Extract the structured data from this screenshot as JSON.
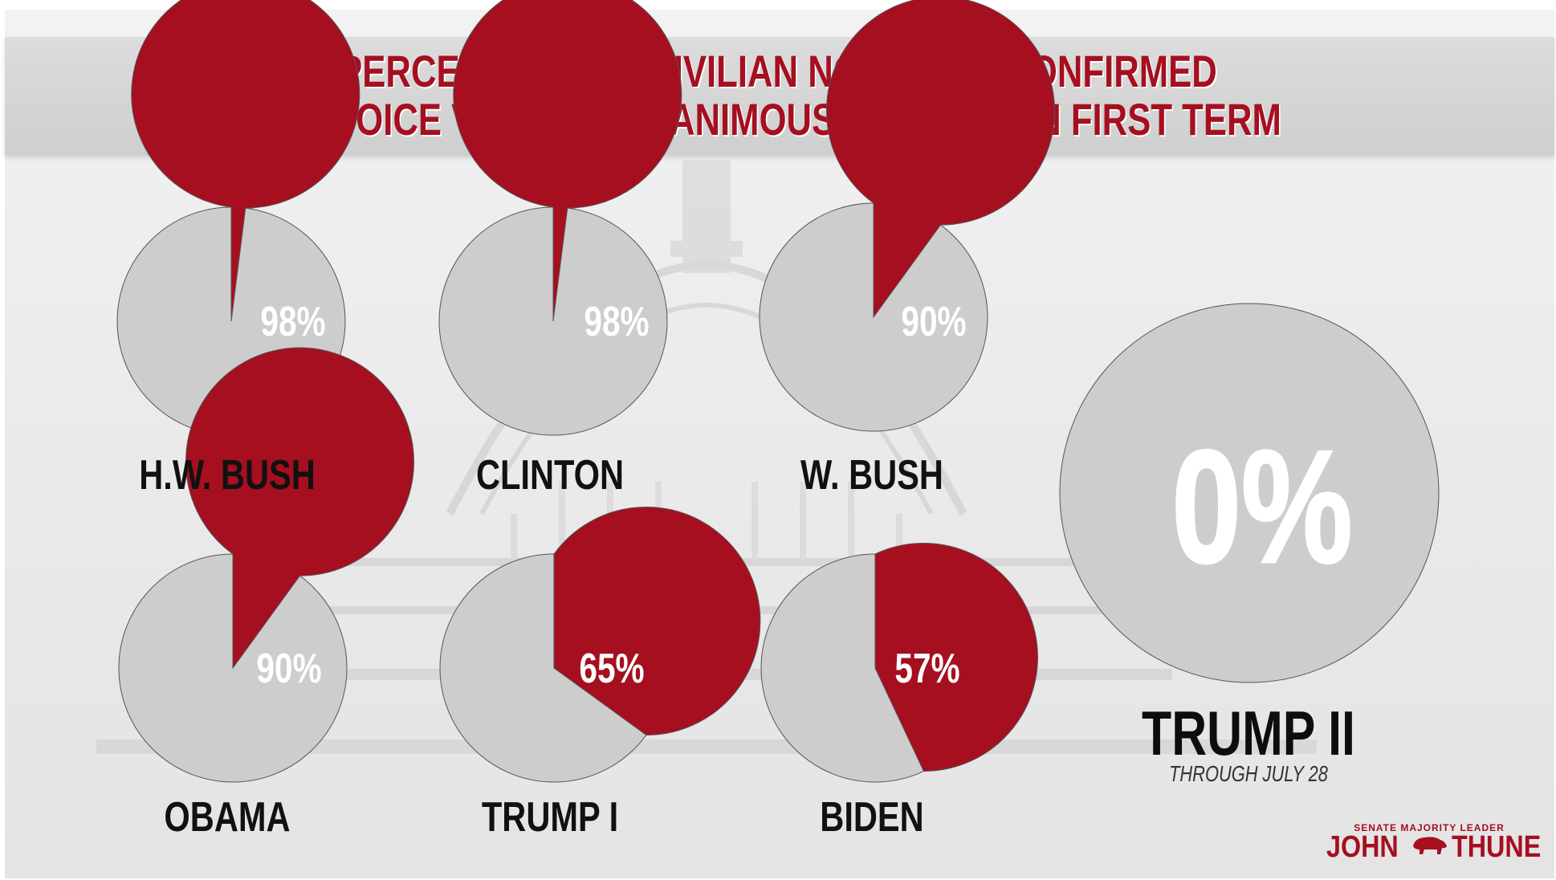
{
  "title": {
    "line1": "PERCENTAGE OF CIVILIAN NOMINEES CONFIRMED",
    "line2": "BY VOICE VOTE OR UNANIMOUS CONSENT IN FIRST TERM"
  },
  "chart_data": {
    "type": "pie",
    "unit": "%",
    "items": [
      {
        "name": "H.W. BUSH",
        "value": 98,
        "label": "98%"
      },
      {
        "name": "CLINTON",
        "value": 98,
        "label": "98%"
      },
      {
        "name": "W. BUSH",
        "value": 90,
        "label": "90%"
      },
      {
        "name": "OBAMA",
        "value": 90,
        "label": "90%"
      },
      {
        "name": "TRUMP I",
        "value": 65,
        "label": "65%"
      },
      {
        "name": "BIDEN",
        "value": 57,
        "label": "57%"
      },
      {
        "name": "TRUMP II",
        "value": 0,
        "label": "0%",
        "note": "THROUGH JULY 28"
      }
    ],
    "colors": {
      "confirmed": "#a50f20",
      "remainder": "#cdcdcd"
    }
  },
  "logo": {
    "caption": "SENATE MAJORITY LEADER",
    "first": "JOHN",
    "last": "THUNE",
    "emblem": "bison-icon"
  }
}
